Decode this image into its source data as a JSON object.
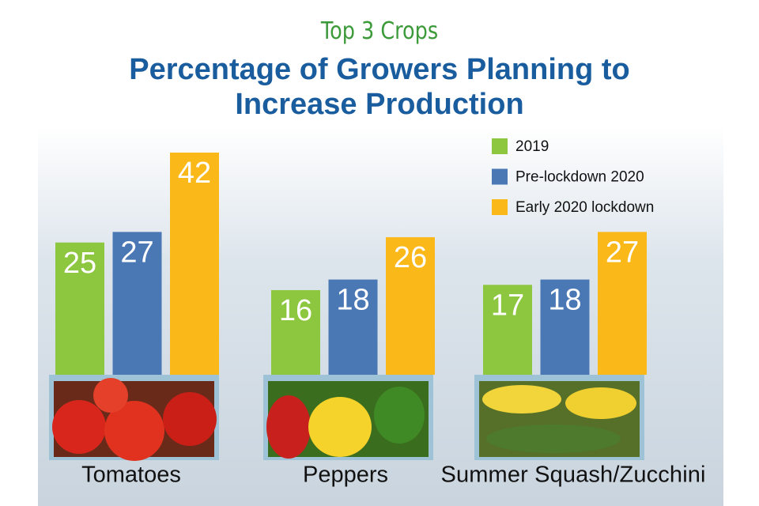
{
  "chart_data": {
    "type": "bar",
    "subtitle": "Top 3 Crops",
    "title": "Percentage of Growers Planning to Increase Production",
    "categories": [
      "Tomatoes",
      "Peppers",
      "Summer Squash/Zucchini"
    ],
    "series": [
      {
        "name": "2019",
        "color": "#8dc63f",
        "values": [
          25,
          16,
          17
        ]
      },
      {
        "name": "Pre-lockdown 2020",
        "color": "#4a78b5",
        "values": [
          27,
          18,
          18
        ]
      },
      {
        "name": "Early 2020 lockdown",
        "color": "#fbb819",
        "values": [
          42,
          26,
          27
        ]
      }
    ],
    "legend": "upper right"
  }
}
